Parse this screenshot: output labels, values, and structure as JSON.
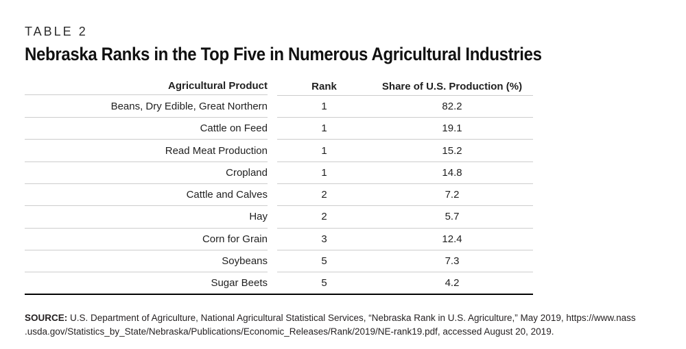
{
  "eyebrow": "TABLE 2",
  "title": "Nebraska Ranks in the Top Five in Numerous Agricultural Industries",
  "table": {
    "headers": {
      "product": "Agricultural Product",
      "rank": "Rank",
      "share": "Share of U.S. Production (%)"
    },
    "rows": [
      {
        "product": "Beans, Dry Edible, Great Northern",
        "rank": "1",
        "share": "82.2"
      },
      {
        "product": "Cattle on Feed",
        "rank": "1",
        "share": "19.1"
      },
      {
        "product": "Read Meat Production",
        "rank": "1",
        "share": "15.2"
      },
      {
        "product": "Cropland",
        "rank": "1",
        "share": "14.8"
      },
      {
        "product": "Cattle and Calves",
        "rank": "2",
        "share": "7.2"
      },
      {
        "product": "Hay",
        "rank": "2",
        "share": "5.7"
      },
      {
        "product": "Corn for Grain",
        "rank": "3",
        "share": "12.4"
      },
      {
        "product": "Soybeans",
        "rank": "5",
        "share": "7.3"
      },
      {
        "product": "Sugar Beets",
        "rank": "5",
        "share": "4.2"
      }
    ]
  },
  "source": {
    "label": "SOURCE:",
    "line1": "U.S. Department of Agriculture, National Agricultural Statistical Services, “Nebraska Rank in U.S. Agriculture,” May 2019, https://www.nass",
    "line2": ".usda.gov/Statistics_by_State/Nebraska/Publications/Economic_Releases/Rank/2019/NE-rank19.pdf, accessed August 20, 2019."
  },
  "colors": {
    "rule_light": "#cccccc",
    "rule_heavy": "#000000",
    "text": "#1f1f1f"
  }
}
